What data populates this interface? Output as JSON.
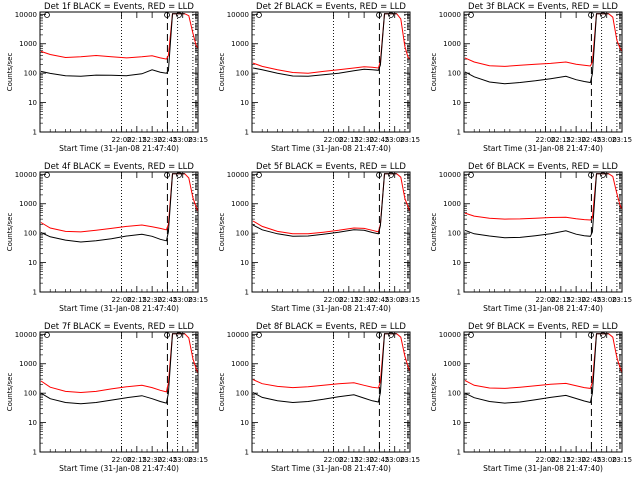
{
  "figure": {
    "time_axis": {
      "ticks": [
        "22:00",
        "22:15",
        "22:30",
        "22:45",
        "23:00",
        "23:15"
      ],
      "range_min": [
        -80,
        75
      ]
    },
    "count_axis": {
      "ticks": [
        "1",
        "10",
        "100",
        "1000",
        "10000"
      ],
      "log": true,
      "range": [
        1,
        12000
      ]
    },
    "markers": {
      "dotted_min": [
        0,
        55,
        70
      ],
      "dashed_min": [
        45,
        73
      ]
    },
    "colors": {
      "events": "#000000",
      "lld": "#ff0000"
    }
  },
  "chart_data": [
    {
      "type": "line",
      "title": "Det 1f BLACK = Events, RED = LLD",
      "xlabel": "Start Time (31-Jan-08 21:47:40)",
      "ylabel": "Counts/sec",
      "xtick_labels": [
        "22:00",
        "22:15",
        "22:30",
        "22:45",
        "23:00",
        "23:15"
      ],
      "ytick_labels": [
        "1",
        "10",
        "100",
        "1000",
        "10000"
      ],
      "x_minutes": [
        -79,
        -70,
        -55,
        -40,
        -25,
        -10,
        5,
        20,
        30,
        38,
        44,
        46,
        50,
        55,
        59,
        62,
        66,
        70,
        73,
        75
      ],
      "series": [
        {
          "color": "#ff0000",
          "values": [
            550,
            430,
            340,
            360,
            400,
            360,
            330,
            360,
            390,
            330,
            300,
            400,
            10500,
            10500,
            10500,
            10500,
            9000,
            2300,
            900,
            700
          ]
        },
        {
          "color": "#000000",
          "values": [
            115,
            98,
            82,
            78,
            86,
            85,
            82,
            95,
            130,
            108,
            100,
            120,
            10500,
            10500,
            10500,
            10500,
            null,
            null,
            null,
            null
          ]
        }
      ]
    },
    {
      "type": "line",
      "title": "Det 2f BLACK = Events, RED = LLD",
      "xlabel": "Start Time (31-Jan-08 21:47:40)",
      "ylabel": "Counts/sec",
      "xtick_labels": [
        "22:00",
        "22:15",
        "22:30",
        "22:45",
        "23:00",
        "23:15"
      ],
      "ytick_labels": [
        "1",
        "10",
        "100",
        "1000",
        "10000"
      ],
      "x_minutes": [
        -79,
        -70,
        -55,
        -40,
        -25,
        -10,
        5,
        20,
        30,
        38,
        44,
        46,
        50,
        55,
        59,
        62,
        66,
        70,
        73,
        75
      ],
      "series": [
        {
          "color": "#ff0000",
          "values": [
            220,
            170,
            130,
            105,
            100,
            115,
            130,
            150,
            165,
            160,
            150,
            250,
            10500,
            10500,
            10500,
            10500,
            7000,
            800,
            350,
            300
          ]
        },
        {
          "color": "#000000",
          "values": [
            150,
            130,
            100,
            80,
            78,
            88,
            100,
            120,
            135,
            130,
            125,
            190,
            10500,
            10500,
            10500,
            10500,
            null,
            null,
            null,
            null
          ]
        }
      ]
    },
    {
      "type": "line",
      "title": "Det 3f BLACK = Events, RED = LLD",
      "xlabel": "Start Time (31-Jan-08 21:47:40)",
      "ylabel": "Counts/sec",
      "xtick_labels": [
        "22:00",
        "22:15",
        "22:30",
        "22:45",
        "23:00",
        "23:15"
      ],
      "ytick_labels": [
        "1",
        "10",
        "100",
        "1000",
        "10000"
      ],
      "x_minutes": [
        -79,
        -70,
        -55,
        -40,
        -25,
        -10,
        5,
        20,
        30,
        38,
        44,
        46,
        50,
        55,
        59,
        62,
        66,
        70,
        73,
        75
      ],
      "series": [
        {
          "color": "#ff0000",
          "values": [
            330,
            240,
            180,
            170,
            185,
            200,
            215,
            240,
            200,
            185,
            175,
            240,
            10500,
            10500,
            10500,
            10500,
            8000,
            1300,
            700,
            550
          ]
        },
        {
          "color": "#000000",
          "values": [
            110,
            75,
            50,
            44,
            48,
            55,
            65,
            78,
            60,
            52,
            48,
            95,
            10500,
            10500,
            10500,
            10500,
            null,
            null,
            null,
            null
          ]
        }
      ]
    },
    {
      "type": "line",
      "title": "Det 4f BLACK = Events, RED = LLD",
      "xlabel": "Start Time (31-Jan-08 21:47:40)",
      "ylabel": "Counts/sec",
      "xtick_labels": [
        "22:00",
        "22:15",
        "22:30",
        "22:45",
        "23:00",
        "23:15"
      ],
      "ytick_labels": [
        "1",
        "10",
        "100",
        "1000",
        "10000"
      ],
      "x_minutes": [
        -79,
        -70,
        -55,
        -40,
        -25,
        -10,
        5,
        20,
        30,
        38,
        44,
        46,
        50,
        55,
        59,
        62,
        66,
        70,
        73,
        75
      ],
      "series": [
        {
          "color": "#ff0000",
          "values": [
            230,
            150,
            115,
            110,
            125,
            145,
            170,
            190,
            165,
            145,
            130,
            200,
            10500,
            10500,
            10500,
            10500,
            7500,
            1600,
            800,
            550
          ]
        },
        {
          "color": "#000000",
          "values": [
            105,
            75,
            58,
            50,
            55,
            65,
            80,
            92,
            78,
            62,
            55,
            110,
            10500,
            10500,
            10500,
            10500,
            null,
            null,
            null,
            null
          ]
        }
      ]
    },
    {
      "type": "line",
      "title": "Det 5f BLACK = Events, RED = LLD",
      "xlabel": "Start Time (31-Jan-08 21:47:40)",
      "ylabel": "Counts/sec",
      "xtick_labels": [
        "22:00",
        "22:15",
        "22:30",
        "22:45",
        "23:00",
        "23:15"
      ],
      "ytick_labels": [
        "1",
        "10",
        "100",
        "1000",
        "10000"
      ],
      "x_minutes": [
        -79,
        -70,
        -55,
        -40,
        -25,
        -10,
        5,
        20,
        30,
        38,
        44,
        46,
        50,
        55,
        59,
        62,
        66,
        70,
        73,
        75
      ],
      "series": [
        {
          "color": "#ff0000",
          "values": [
            260,
            170,
            115,
            95,
            95,
            108,
            125,
            150,
            145,
            125,
            110,
            200,
            10500,
            10500,
            10500,
            10500,
            8000,
            1500,
            800,
            550
          ]
        },
        {
          "color": "#000000",
          "values": [
            190,
            130,
            95,
            78,
            80,
            92,
            108,
            130,
            125,
            105,
            95,
            180,
            10500,
            10500,
            10500,
            10500,
            null,
            null,
            null,
            null
          ]
        }
      ]
    },
    {
      "type": "line",
      "title": "Det 6f BLACK = Events, RED = LLD",
      "xlabel": "Start Time (31-Jan-08 21:47:40)",
      "ylabel": "Counts/sec",
      "xtick_labels": [
        "22:00",
        "22:15",
        "22:30",
        "22:45",
        "23:00",
        "23:15"
      ],
      "ytick_labels": [
        "1",
        "10",
        "100",
        "1000",
        "10000"
      ],
      "x_minutes": [
        -79,
        -70,
        -55,
        -40,
        -25,
        -10,
        5,
        20,
        30,
        38,
        44,
        46,
        50,
        55,
        59,
        62,
        66,
        70,
        73,
        75
      ],
      "series": [
        {
          "color": "#ff0000",
          "values": [
            480,
            380,
            320,
            300,
            305,
            320,
            340,
            350,
            310,
            290,
            280,
            330,
            10500,
            10500,
            10500,
            10500,
            8500,
            2200,
            900,
            650
          ]
        },
        {
          "color": "#000000",
          "values": [
            125,
            95,
            80,
            70,
            72,
            82,
            95,
            120,
            92,
            82,
            78,
            110,
            10500,
            10500,
            10500,
            10500,
            null,
            null,
            null,
            null
          ]
        }
      ]
    },
    {
      "type": "line",
      "title": "Det 7f BLACK = Events, RED = LLD",
      "xlabel": "Start Time (31-Jan-08 21:47:40)",
      "ylabel": "Counts/sec",
      "xtick_labels": [
        "22:00",
        "22:15",
        "22:30",
        "22:45",
        "23:00",
        "23:15"
      ],
      "ytick_labels": [
        "1",
        "10",
        "100",
        "1000",
        "10000"
      ],
      "x_minutes": [
        -79,
        -70,
        -55,
        -40,
        -25,
        -10,
        5,
        20,
        30,
        38,
        44,
        46,
        50,
        55,
        59,
        62,
        66,
        70,
        73,
        75
      ],
      "series": [
        {
          "color": "#ff0000",
          "values": [
            260,
            160,
            115,
            105,
            115,
            140,
            165,
            185,
            155,
            125,
            110,
            220,
            10500,
            10500,
            10500,
            10500,
            7500,
            1500,
            700,
            480
          ]
        },
        {
          "color": "#000000",
          "values": [
            100,
            65,
            48,
            44,
            48,
            58,
            70,
            82,
            65,
            52,
            46,
            100,
            10500,
            10500,
            10500,
            10500,
            null,
            null,
            null,
            null
          ]
        }
      ]
    },
    {
      "type": "line",
      "title": "Det 8f BLACK = Events, RED = LLD",
      "xlabel": "Start Time (31-Jan-08 21:47:40)",
      "ylabel": "Counts/sec",
      "xtick_labels": [
        "22:00",
        "22:15",
        "22:30",
        "22:45",
        "23:00",
        "23:15"
      ],
      "ytick_labels": [
        "1",
        "10",
        "100",
        "1000",
        "10000"
      ],
      "x_minutes": [
        -79,
        -70,
        -55,
        -40,
        -25,
        -10,
        5,
        20,
        30,
        38,
        44,
        46,
        50,
        55,
        59,
        62,
        66,
        70,
        73,
        75
      ],
      "series": [
        {
          "color": "#ff0000",
          "values": [
            290,
            210,
            170,
            155,
            165,
            185,
            210,
            225,
            185,
            160,
            150,
            250,
            10500,
            10500,
            10500,
            10500,
            8000,
            1800,
            800,
            550
          ]
        },
        {
          "color": "#000000",
          "values": [
            105,
            72,
            55,
            48,
            52,
            62,
            76,
            88,
            68,
            55,
            50,
            105,
            10500,
            10500,
            10500,
            10500,
            null,
            null,
            null,
            null
          ]
        }
      ]
    },
    {
      "type": "line",
      "title": "Det 9f BLACK = Events, RED = LLD",
      "xlabel": "Start Time (31-Jan-08 21:47:40)",
      "ylabel": "Counts/sec",
      "xtick_labels": [
        "22:00",
        "22:15",
        "22:30",
        "22:45",
        "23:00",
        "23:15"
      ],
      "ytick_labels": [
        "1",
        "10",
        "100",
        "1000",
        "10000"
      ],
      "x_minutes": [
        -79,
        -70,
        -55,
        -40,
        -25,
        -10,
        5,
        20,
        30,
        38,
        44,
        46,
        50,
        55,
        59,
        62,
        66,
        70,
        73,
        75
      ],
      "series": [
        {
          "color": "#ff0000",
          "values": [
            270,
            185,
            150,
            145,
            160,
            180,
            200,
            215,
            180,
            155,
            145,
            240,
            10500,
            10500,
            10500,
            10500,
            8000,
            1600,
            750,
            500
          ]
        },
        {
          "color": "#000000",
          "values": [
            100,
            70,
            52,
            46,
            50,
            60,
            72,
            84,
            66,
            54,
            48,
            100,
            10500,
            10500,
            10500,
            10500,
            null,
            null,
            null,
            null
          ]
        }
      ]
    }
  ]
}
